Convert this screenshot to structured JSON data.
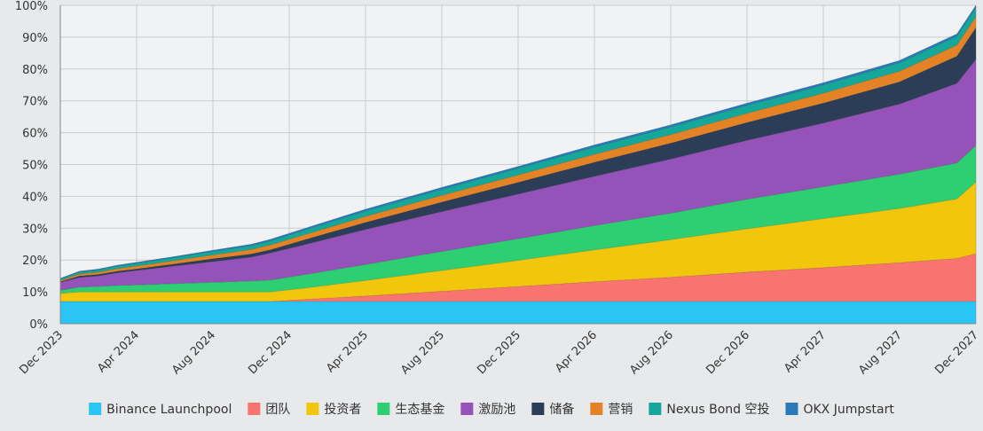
{
  "chart_data": {
    "type": "area",
    "stacked": true,
    "x": [
      "2023-12",
      "2024-01",
      "2024-02",
      "2024-03",
      "2024-04",
      "2024-06",
      "2024-08",
      "2024-10",
      "2024-11",
      "2025-01",
      "2025-04",
      "2025-08",
      "2025-12",
      "2026-04",
      "2026-08",
      "2026-12",
      "2027-04",
      "2027-08",
      "2027-11",
      "2027-12"
    ],
    "x_tick_labels": [
      "Dec 2023",
      "Apr 2024",
      "Aug 2024",
      "Dec 2024",
      "Apr 2025",
      "Aug 2025",
      "Dec 2025",
      "Apr 2026",
      "Aug 2026",
      "Dec 2026",
      "Apr 2027",
      "Aug 2027",
      "Dec 2027"
    ],
    "y_tick_labels": [
      "0%",
      "10%",
      "20%",
      "30%",
      "40%",
      "50%",
      "60%",
      "70%",
      "80%",
      "90%",
      "100%"
    ],
    "ylim": [
      0,
      100
    ],
    "grid": true,
    "legend_position": "bottom",
    "series": [
      {
        "name": "Binance Launchpool",
        "color": "#29c6f3",
        "values": [
          7,
          7,
          7,
          7,
          7,
          7,
          7,
          7,
          7,
          7,
          7,
          7,
          7,
          7,
          7,
          7,
          7,
          7,
          7,
          7
        ]
      },
      {
        "name": "团队",
        "color": "#f8746f",
        "values": [
          0,
          0,
          0,
          0,
          0,
          0,
          0,
          0,
          0,
          0.7,
          1.7,
          3.2,
          4.7,
          6.2,
          7.6,
          9.2,
          10.6,
          12.2,
          13.5,
          15
        ]
      },
      {
        "name": "投资者",
        "color": "#f2c60c",
        "values": [
          2.5,
          3,
          3,
          3,
          3,
          3,
          3,
          3,
          3,
          3.6,
          4.9,
          6.5,
          8.2,
          10,
          11.8,
          13.6,
          15.4,
          17,
          18.7,
          22.5
        ]
      },
      {
        "name": "生态基金",
        "color": "#2ecf73",
        "values": [
          1,
          1.5,
          1.7,
          2,
          2.2,
          2.6,
          3,
          3.4,
          3.7,
          4.3,
          5,
          6,
          6.8,
          7.6,
          8.3,
          9.3,
          10,
          10.8,
          11.3,
          11.5
        ]
      },
      {
        "name": "激励池",
        "color": "#9552b9",
        "values": [
          2.5,
          3,
          3.3,
          4,
          4.5,
          5.5,
          6.5,
          7.5,
          8.5,
          9.5,
          11,
          12.5,
          14,
          15.5,
          17,
          18.5,
          20,
          22,
          25,
          27
        ]
      },
      {
        "name": "储备",
        "color": "#2c3e57",
        "values": [
          0.2,
          0.5,
          0.5,
          0.5,
          0.5,
          0.7,
          0.9,
          1,
          1,
          1.6,
          2.2,
          3,
          3.7,
          4.4,
          5,
          5.6,
          6.3,
          7,
          8.5,
          10
        ]
      },
      {
        "name": "营销",
        "color": "#e38325",
        "values": [
          0.4,
          0.6,
          0.7,
          0.8,
          0.9,
          1,
          1.2,
          1.4,
          1.5,
          1.6,
          1.9,
          2.1,
          2.3,
          2.5,
          2.7,
          2.9,
          3.1,
          3.3,
          3.5,
          3.5
        ]
      },
      {
        "name": "Nexus Bond 空投",
        "color": "#15a89a",
        "values": [
          0.5,
          0.6,
          0.7,
          0.8,
          0.9,
          1,
          1.1,
          1.2,
          1.3,
          1.5,
          1.7,
          1.9,
          2.1,
          2.3,
          2.4,
          2.5,
          2.6,
          2.7,
          2.8,
          2.8
        ]
      },
      {
        "name": "OKX Jumpstart",
        "color": "#2a7ab9",
        "values": [
          0.2,
          0.3,
          0.3,
          0.3,
          0.3,
          0.35,
          0.4,
          0.45,
          0.5,
          0.5,
          0.55,
          0.6,
          0.62,
          0.65,
          0.68,
          0.7,
          0.7,
          0.7,
          0.7,
          0.7
        ]
      }
    ]
  }
}
